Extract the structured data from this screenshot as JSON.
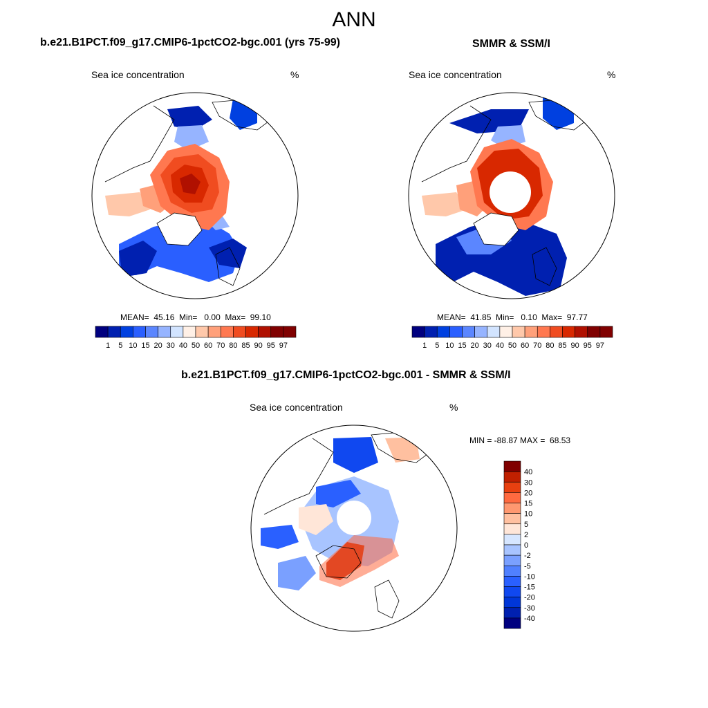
{
  "figure": {
    "title": "ANN"
  },
  "panels": {
    "model": {
      "title": "b.e21.B1PCT.f09_g17.CMIP6-1pctCO2-bgc.001 (yrs 75-99)",
      "var_label": "Sea ice concentration",
      "units": "%",
      "stats": "MEAN=  45.16  Min=   0.00  Max=  99.10"
    },
    "obs": {
      "title": "SMMR & SSM/I",
      "var_label": "Sea ice concentration",
      "units": "%",
      "stats": "MEAN=  41.85  Min=   0.10  Max=  97.77"
    },
    "diff": {
      "title": "b.e21.B1PCT.f09_g17.CMIP6-1pctCO2-bgc.001 - SMMR & SSM/I",
      "var_label": "Sea ice concentration",
      "units": "%",
      "stats": "MIN = -88.87 MAX =  68.53"
    }
  },
  "colors": {
    "concentration": [
      "#00007f",
      "#0020b0",
      "#0040e0",
      "#2a5fff",
      "#5b86ff",
      "#96b4ff",
      "#d2e4ff",
      "#fff0e6",
      "#ffc8aa",
      "#ffa07a",
      "#ff7850",
      "#f04c20",
      "#d82800",
      "#b01000",
      "#800000"
    ],
    "difference": [
      "#00007f",
      "#0020b0",
      "#0036d8",
      "#1048f0",
      "#2a60ff",
      "#5080ff",
      "#7aa0ff",
      "#a8c4ff",
      "#d6e6ff",
      "#ffe6d8",
      "#ffc0a0",
      "#ff9870",
      "#ff6a40",
      "#e84010",
      "#c02000",
      "#800000"
    ]
  },
  "chart_data": [
    {
      "type": "heatmap",
      "title": "b.e21.B1PCT.f09_g17.CMIP6-1pctCO2-bgc.001 (yrs 75-99)",
      "variable": "Sea ice concentration",
      "units": "%",
      "projection": "north polar stereographic",
      "mean": 45.16,
      "min": 0.0,
      "max": 99.1,
      "colorbar_labels": [
        "1",
        "5",
        "10",
        "15",
        "20",
        "30",
        "40",
        "50",
        "60",
        "70",
        "80",
        "85",
        "90",
        "95",
        "97"
      ]
    },
    {
      "type": "heatmap",
      "title": "SMMR & SSM/I",
      "variable": "Sea ice concentration",
      "units": "%",
      "projection": "north polar stereographic",
      "mean": 41.85,
      "min": 0.1,
      "max": 97.77,
      "colorbar_labels": [
        "1",
        "5",
        "10",
        "15",
        "20",
        "30",
        "40",
        "50",
        "60",
        "70",
        "80",
        "85",
        "90",
        "95",
        "97"
      ]
    },
    {
      "type": "heatmap",
      "title": "b.e21.B1PCT.f09_g17.CMIP6-1pctCO2-bgc.001 - SMMR & SSM/I",
      "variable": "Sea ice concentration",
      "units": "%",
      "projection": "north polar stereographic",
      "min": -88.87,
      "max": 68.53,
      "colorbar_labels": [
        "40",
        "30",
        "20",
        "15",
        "10",
        "5",
        "2",
        "0",
        "-2",
        "-5",
        "-10",
        "-15",
        "-20",
        "-30",
        "-40"
      ]
    }
  ]
}
